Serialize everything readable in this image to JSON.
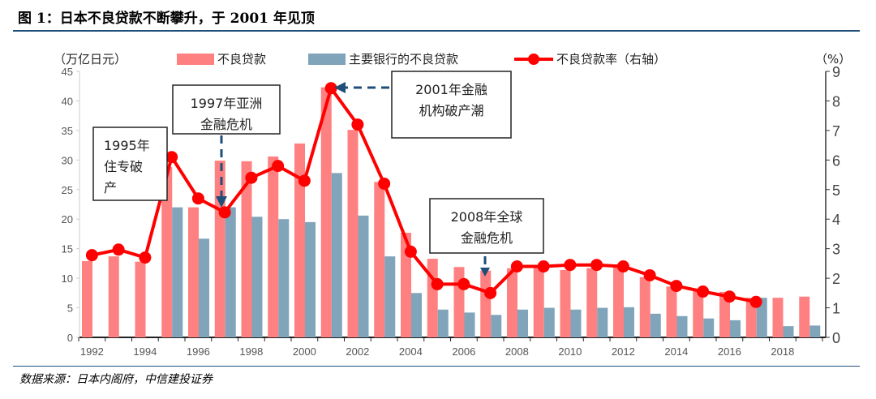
{
  "title": "图 1：日本不良贷款不断攀升，于 2001 年见顶",
  "source": "数据来源：日本内阁府，中信建投证券",
  "colors": {
    "npl": "#ff8080",
    "major": "#80a4ba",
    "ratio": "#ff0000",
    "rule": "#1f4e79",
    "arrow": "#1f4e79"
  },
  "chart_data": {
    "type": "bar+line",
    "left_axis_label": "（万亿日元）",
    "right_axis_label": "（%）",
    "ylim_left": [
      0,
      45
    ],
    "yticks_left": [
      0,
      5,
      10,
      15,
      20,
      25,
      30,
      35,
      40,
      45
    ],
    "ylim_right": [
      0,
      9
    ],
    "yticks_right": [
      0,
      1,
      2,
      3,
      4,
      5,
      6,
      7,
      8,
      9
    ],
    "categories": [
      1992,
      1993,
      1994,
      1995,
      1996,
      1997,
      1998,
      1999,
      2000,
      2001,
      2002,
      2003,
      2004,
      2005,
      2006,
      2007,
      2008,
      2009,
      2010,
      2011,
      2012,
      2013,
      2014,
      2015,
      2016,
      2017,
      2018,
      2019
    ],
    "xtick_labels": [
      "1992",
      "1994",
      "1996",
      "1998",
      "2000",
      "2002",
      "2004",
      "2006",
      "2008",
      "2010",
      "2012",
      "2014",
      "2016",
      "2018"
    ],
    "grid": false,
    "legend": "top",
    "series": [
      {
        "name": "不良贷款",
        "type": "bar",
        "axis": "left",
        "values": [
          12.9,
          13.7,
          12.8,
          28.8,
          22.0,
          29.9,
          29.8,
          30.6,
          32.8,
          42.3,
          35.1,
          26.3,
          17.7,
          13.3,
          11.9,
          11.3,
          11.7,
          11.8,
          11.4,
          11.7,
          12.0,
          10.2,
          8.6,
          8.1,
          7.7,
          6.7,
          6.7,
          6.9
        ]
      },
      {
        "name": "主要银行的不良贷款",
        "type": "bar",
        "axis": "left",
        "values": [
          null,
          null,
          null,
          22.0,
          16.7,
          22.0,
          20.4,
          20.0,
          19.5,
          27.8,
          20.6,
          13.7,
          7.5,
          4.7,
          4.2,
          3.8,
          4.7,
          5.0,
          4.7,
          5.0,
          5.1,
          4.0,
          3.6,
          3.2,
          2.9,
          6.7,
          1.9,
          2.0
        ]
      },
      {
        "name": "不良贷款率（右轴）",
        "type": "line",
        "axis": "right",
        "values": [
          2.78,
          2.97,
          2.7,
          6.1,
          4.7,
          4.23,
          5.4,
          5.8,
          5.3,
          8.43,
          7.2,
          5.2,
          2.9,
          1.8,
          1.8,
          1.5,
          2.4,
          2.4,
          2.45,
          2.45,
          2.4,
          2.1,
          1.74,
          1.55,
          1.38,
          1.2,
          null,
          null
        ]
      }
    ],
    "annotations": [
      {
        "lines": [
          "1995年",
          "住专破",
          "产"
        ]
      },
      {
        "lines": [
          "1997年亚洲",
          "金融危机"
        ]
      },
      {
        "lines": [
          "2001年金融",
          "机构破产潮"
        ]
      },
      {
        "lines": [
          "2008年全球",
          "金融危机"
        ]
      }
    ]
  }
}
